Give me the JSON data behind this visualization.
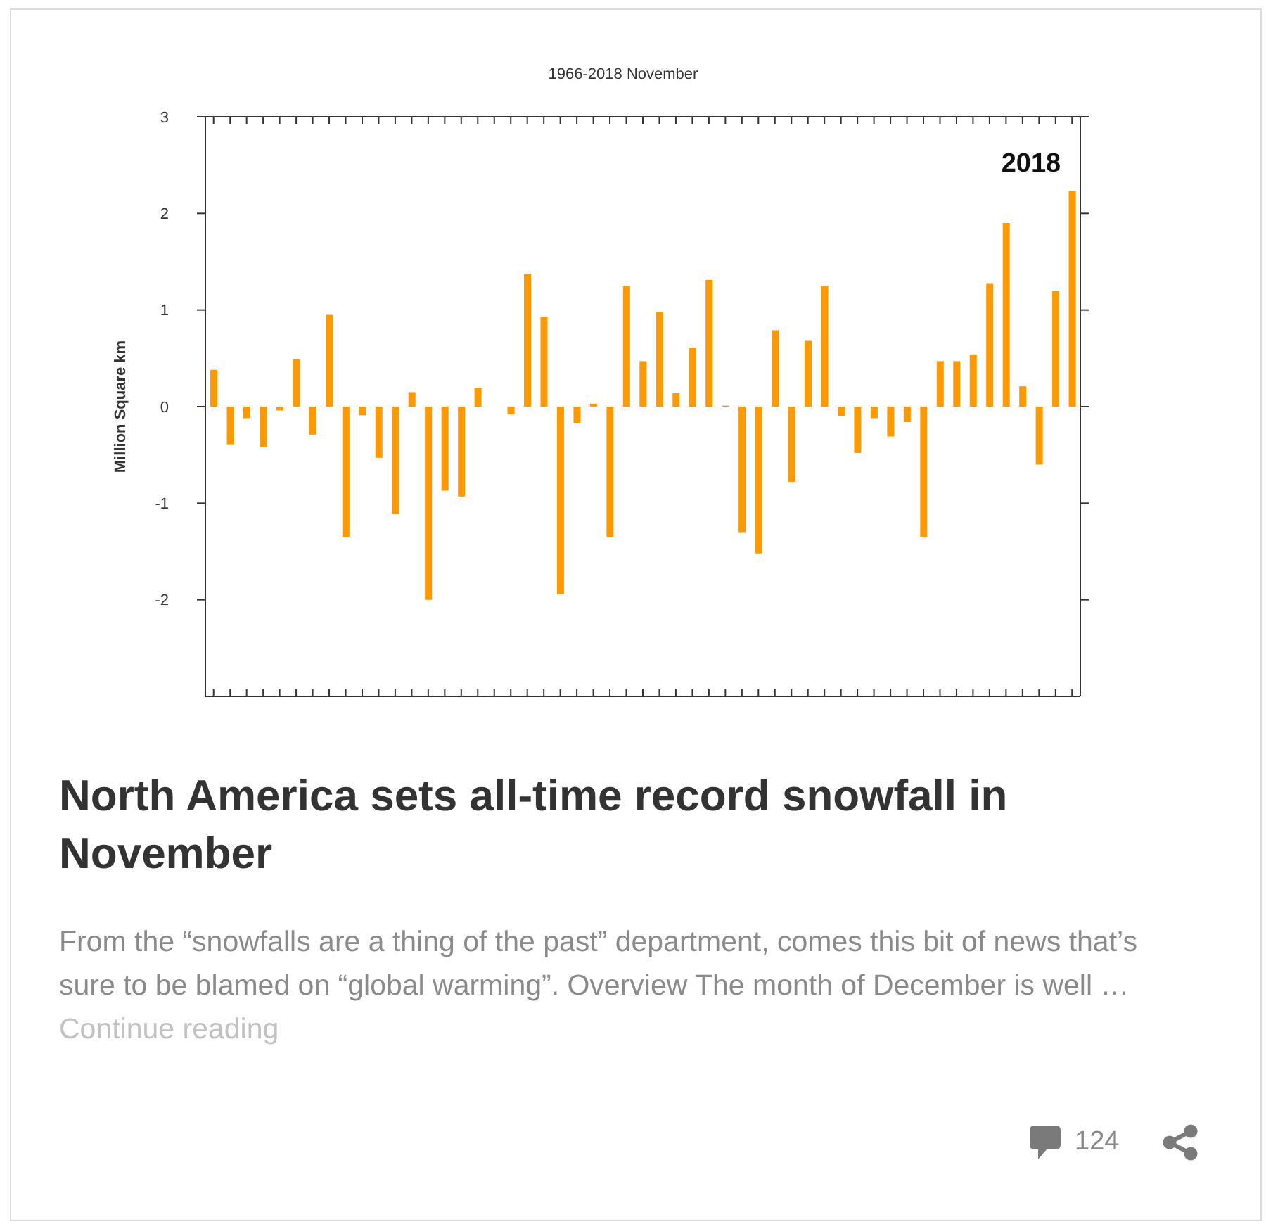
{
  "chart_data": {
    "type": "bar",
    "title": "1966-2018 November",
    "ylabel": "Million Square km",
    "categories": [
      null,
      null,
      null,
      null,
      null,
      null,
      null,
      null,
      null,
      null,
      null,
      null,
      null,
      null,
      null,
      null,
      null,
      null,
      null,
      null,
      null,
      null,
      null,
      null,
      null,
      null,
      null,
      null,
      null,
      null,
      null,
      null,
      null,
      null,
      null,
      null,
      null,
      null,
      null,
      null,
      null,
      null,
      null,
      null,
      null,
      null,
      null,
      null,
      null,
      null,
      null,
      null,
      null
    ],
    "values": [
      0.38,
      -0.39,
      -0.12,
      -0.42,
      -0.04,
      0.49,
      -0.29,
      0.95,
      -1.35,
      -0.09,
      -0.53,
      -1.11,
      0.15,
      -2.0,
      -0.87,
      -0.93,
      0.19,
      null,
      -0.08,
      1.37,
      0.93,
      -1.94,
      -0.17,
      0.03,
      -1.35,
      1.25,
      0.47,
      0.98,
      0.14,
      0.61,
      1.31,
      0.01,
      -1.3,
      -1.52,
      0.79,
      -0.78,
      0.68,
      1.25,
      -0.1,
      -0.48,
      -0.12,
      -0.31,
      -0.16,
      -1.35,
      0.47,
      0.47,
      0.54,
      1.27,
      1.9,
      0.21,
      -0.6,
      1.2,
      2.23
    ],
    "color": "#ff9900",
    "ylim": [
      -3,
      3
    ],
    "yticks": [
      -2,
      -1,
      0,
      1,
      2,
      3
    ],
    "tick_labels": "y",
    "annotations": [
      "2018",
      "North America sets all-time record snowfall in November",
      "From the “snowfalls are a thing of the past” department, comes this bit of news that’s sure to be blamed on “global warming”. Overview The month of December is well …",
      "Continue reading",
      "124"
    ]
  }
}
